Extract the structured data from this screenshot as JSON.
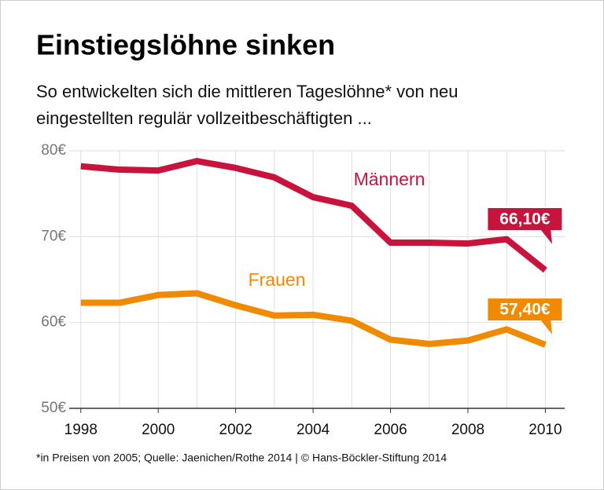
{
  "chart_data": {
    "type": "line",
    "title": "Einstiegslöhne sinken",
    "subtitle": [
      "So entwickelten sich die mittleren Tageslöhne* von neu",
      "eingestellten regulär vollzeitbeschäftigten ..."
    ],
    "note": "*in Preisen von 2005; Quelle: Jaenichen/Rothe 2014 | © Hans-Böckler-Stiftung 2014",
    "x": [
      1998,
      1999,
      2000,
      2001,
      2002,
      2003,
      2004,
      2005,
      2006,
      2007,
      2008,
      2009,
      2010
    ],
    "xlim": [
      1997.7,
      2010.5
    ],
    "xticks": [
      1998,
      2000,
      2002,
      2004,
      2006,
      2008,
      2010
    ],
    "ylim": [
      50,
      80
    ],
    "yticks": [
      {
        "value": 50,
        "label": "50€"
      },
      {
        "value": 60,
        "label": "60€"
      },
      {
        "value": 70,
        "label": "70€"
      },
      {
        "value": 80,
        "label": "80€"
      }
    ],
    "grid": true,
    "series": [
      {
        "name": "Männern",
        "color": "#c8143c",
        "values": [
          78.2,
          77.8,
          77.7,
          78.8,
          78.0,
          76.9,
          74.6,
          73.6,
          69.3,
          69.3,
          69.2,
          69.7,
          66.1
        ],
        "value_labels": [
          null,
          null,
          null,
          null,
          null,
          null,
          null,
          null,
          null,
          null,
          null,
          null,
          "66,10€"
        ]
      },
      {
        "name": "Frauen",
        "color": "#f08a00",
        "values": [
          62.3,
          62.3,
          63.2,
          63.4,
          62.0,
          60.8,
          60.9,
          60.2,
          58.0,
          57.5,
          57.9,
          59.2,
          57.4
        ],
        "value_labels": [
          null,
          null,
          null,
          null,
          null,
          null,
          null,
          null,
          null,
          null,
          null,
          null,
          "57,40€"
        ]
      }
    ]
  }
}
